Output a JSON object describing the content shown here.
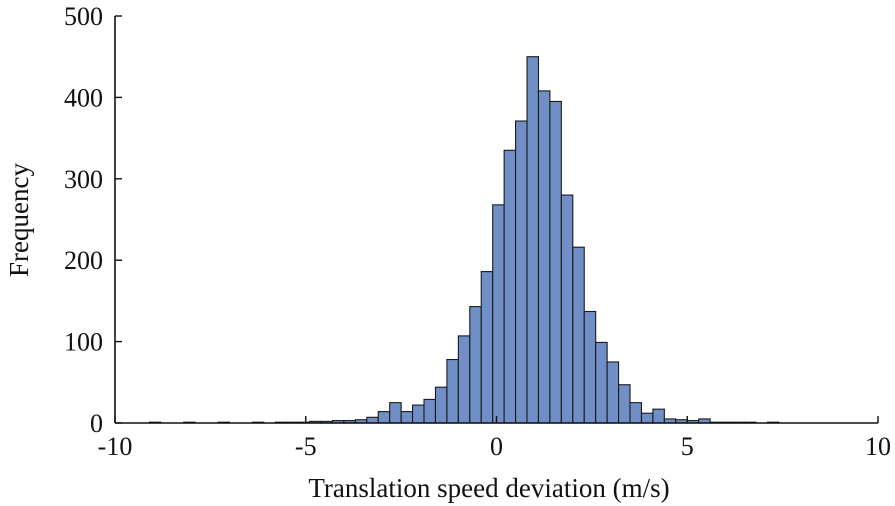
{
  "chart_data": {
    "type": "bar",
    "title": "",
    "xlabel": "Translation speed deviation (m/s)",
    "ylabel": "Frequency",
    "xlim": [
      -10,
      10
    ],
    "ylim": [
      0,
      500
    ],
    "xticks": [
      -10,
      -5,
      0,
      5,
      10
    ],
    "yticks": [
      0,
      100,
      200,
      300,
      400,
      500
    ],
    "xtick_labels": [
      "-10",
      "-5",
      "0",
      "5",
      "10"
    ],
    "ytick_labels": [
      "0",
      "100",
      "200",
      "300",
      "400",
      "500"
    ],
    "bin_width": 0.3,
    "bin_start": -9.1,
    "values": [
      1,
      0,
      0,
      1,
      0,
      0,
      1,
      0,
      0,
      1,
      0,
      1,
      1,
      1,
      2,
      2,
      3,
      3,
      4,
      7,
      14,
      25,
      14,
      22,
      29,
      44,
      78,
      107,
      143,
      186,
      268,
      335,
      371,
      450,
      408,
      395,
      280,
      216,
      137,
      99,
      75,
      47,
      25,
      12,
      17,
      5,
      4,
      3,
      5,
      1,
      1,
      1,
      1,
      0,
      1,
      0
    ],
    "grid": false,
    "legend": "none",
    "colors": {
      "bar_fill": "#6f8fc6",
      "bar_edge": "#1a1a1a",
      "axis": "#111111"
    }
  }
}
